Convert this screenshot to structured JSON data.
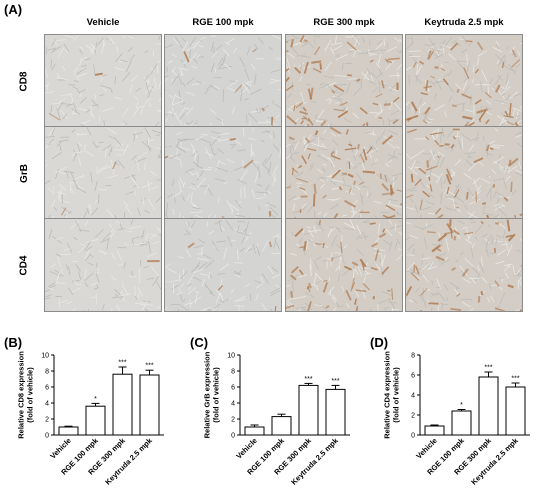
{
  "micrographs": {
    "label": "(A)",
    "columns": [
      "Vehicle",
      "RGE 100 mpk",
      "RGE 300 mpk",
      "Keytruda 2.5 mpk"
    ],
    "rows": [
      "CD8",
      "GrB",
      "CD4"
    ],
    "stain_color": "#b07a4f",
    "background_color": "#d8d6d2"
  },
  "chart_data": [
    {
      "type": "bar",
      "label": "(B)",
      "categories": [
        "Vehicle",
        "RGE 100 mpk",
        "RGE 300 mpk",
        "Keytruda 2.5 mpk"
      ],
      "values": [
        1.0,
        3.6,
        7.6,
        7.5
      ],
      "errors": [
        0.1,
        0.35,
        0.9,
        0.6
      ],
      "significance": [
        "",
        "*",
        "***",
        "***"
      ],
      "ylabel": "Relative CD8 expression\n(fold of vehicle)",
      "ylim": [
        0,
        10
      ],
      "yticks": [
        0,
        2,
        4,
        6,
        8,
        10
      ]
    },
    {
      "type": "bar",
      "label": "(C)",
      "categories": [
        "Vehicle",
        "RGE 100 mpk",
        "RGE 300 mpk",
        "Keytruda 2.5 mpk"
      ],
      "values": [
        1.0,
        2.3,
        6.2,
        5.7
      ],
      "errors": [
        0.25,
        0.3,
        0.25,
        0.5
      ],
      "significance": [
        "",
        "",
        "***",
        "***"
      ],
      "ylabel": "Relative GrB expression\n(fold of vehicle)",
      "ylim": [
        0,
        10
      ],
      "yticks": [
        0,
        2,
        4,
        6,
        8,
        10
      ]
    },
    {
      "type": "bar",
      "label": "(D)",
      "categories": [
        "Vehicle",
        "RGE 100 mpk",
        "RGE 300 mpk",
        "Keytruda 2.5 mpk"
      ],
      "values": [
        0.9,
        2.4,
        5.8,
        4.8
      ],
      "errors": [
        0.1,
        0.15,
        0.5,
        0.4
      ],
      "significance": [
        "",
        "*",
        "***",
        "***"
      ],
      "ylabel": "Relative CD4 expression\n(fold of vehicle)",
      "ylim": [
        0,
        8
      ],
      "yticks": [
        0,
        2,
        4,
        6,
        8
      ]
    }
  ]
}
